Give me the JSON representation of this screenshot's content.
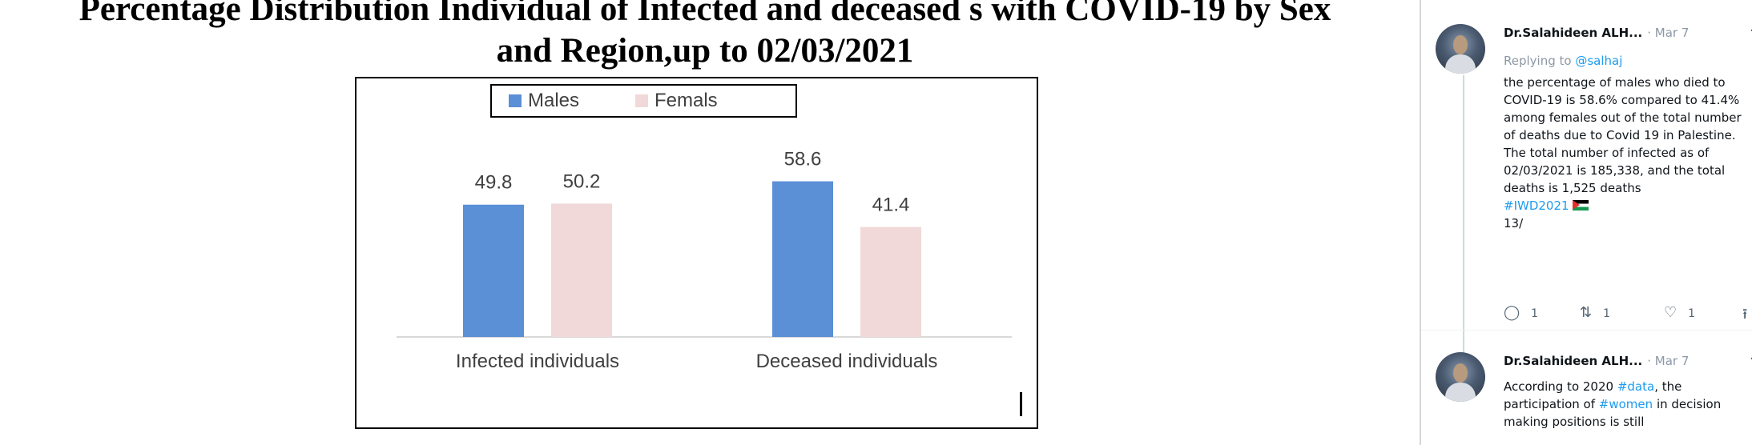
{
  "title_line1": "Percentage Distribution Individual of Infected and deceased s with COVID-19 by Sex",
  "title_line2": "and Region,up to 02/03/2021",
  "chart_data": {
    "type": "bar",
    "categories": [
      "Infected individuals",
      "Deceased individuals"
    ],
    "series": [
      {
        "name": "Males",
        "values": [
          49.8,
          58.6
        ],
        "color": "#5b8fd6"
      },
      {
        "name": "Femals",
        "values": [
          50.2,
          41.4
        ],
        "color": "#f0d9d8"
      }
    ],
    "ylim": [
      0,
      80
    ],
    "legend_position": "top",
    "grid": false,
    "title": "",
    "xlabel": "",
    "ylabel": ""
  },
  "tweets": [
    {
      "name": "Dr.Salahideen ALH...",
      "date": "· Mar 7",
      "more": "···",
      "reply_prefix": "Replying to ",
      "reply_handle": "@salhaj",
      "body": "the percentage of males who died to COVID-19 is 58.6% compared to 41.4% among females out of the total number of deaths due to Covid 19 in Palestine. The total number of infected as of 02/03/2021 is 185,338, and the total deaths is 1,525 deaths",
      "hashtag": "#IWD2021",
      "counter": "13/",
      "replies": "1",
      "retweets": "1",
      "likes": "1",
      "icons": {
        "reply": "reply-icon",
        "retweet": "retweet-icon",
        "like": "like-icon",
        "share": "share-icon"
      }
    },
    {
      "name": "Dr.Salahideen ALH...",
      "date": "· Mar 7",
      "more": "···",
      "body_p1": "According to 2020 ",
      "tag1": "#data",
      "body_p2": ", the participation of ",
      "tag2": "#women",
      "body_p3": " in decision making positions is still"
    }
  ]
}
